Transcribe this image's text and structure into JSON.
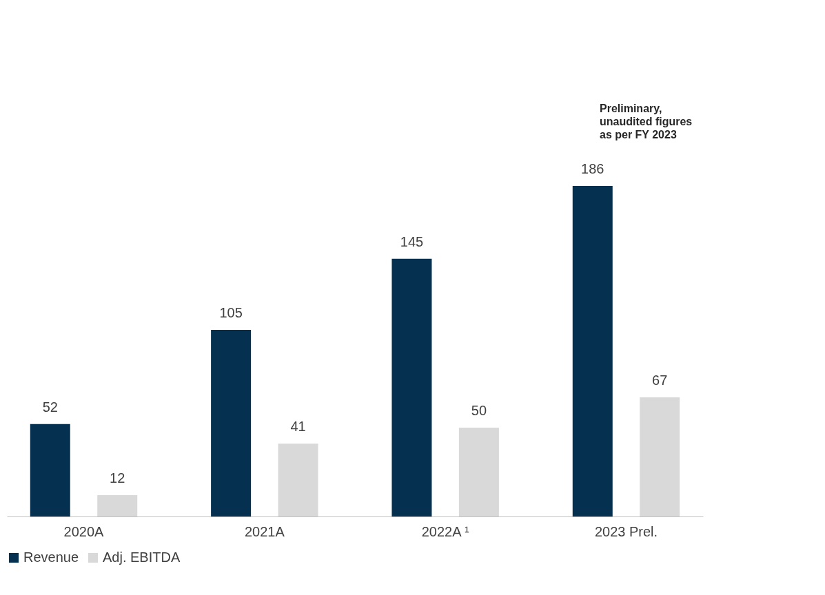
{
  "chart_data": {
    "type": "bar",
    "categories": [
      "2020A",
      "2021A",
      "2022A ¹",
      "2023 Prel."
    ],
    "series": [
      {
        "name": "Revenue",
        "color": "#06304f",
        "values": [
          52,
          105,
          145,
          186
        ]
      },
      {
        "name": "Adj. EBITDA",
        "color": "#d9d9d9",
        "values": [
          12,
          41,
          50,
          67
        ]
      }
    ],
    "data_labels": true,
    "legend": "bottom",
    "grid": false,
    "annotations": [
      "Preliminary,\nunaudited figures\nas per FY 2023"
    ]
  }
}
